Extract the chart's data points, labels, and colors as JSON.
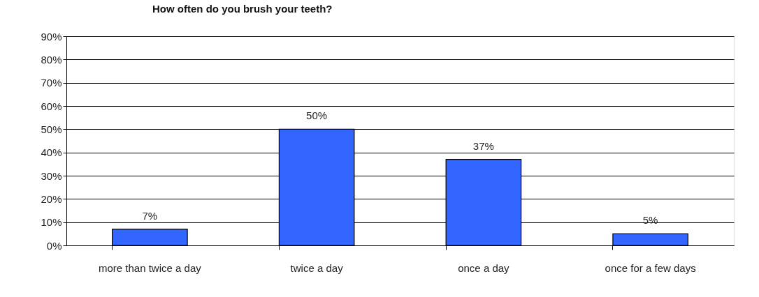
{
  "chart_data": {
    "type": "bar",
    "title": "How often do you brush your teeth?",
    "categories": [
      "more than twice a day",
      "twice a day",
      "once a day",
      "once for a few days"
    ],
    "values": [
      7,
      50,
      37,
      5
    ],
    "value_labels": [
      "7%",
      "50%",
      "37%",
      "5%"
    ],
    "color": "#3366ff",
    "ylim": [
      0,
      90
    ],
    "yticks": [
      {
        "value": 0,
        "label": "0%"
      },
      {
        "value": 10,
        "label": "10%"
      },
      {
        "value": 20,
        "label": "20%"
      },
      {
        "value": 30,
        "label": "30%"
      },
      {
        "value": 40,
        "label": "40%"
      },
      {
        "value": 50,
        "label": "50%"
      },
      {
        "value": 60,
        "label": "60%"
      },
      {
        "value": 70,
        "label": "70%"
      },
      {
        "value": 80,
        "label": "80%"
      },
      {
        "value": 90,
        "label": "90%"
      }
    ],
    "grid": "y",
    "legend": false
  }
}
